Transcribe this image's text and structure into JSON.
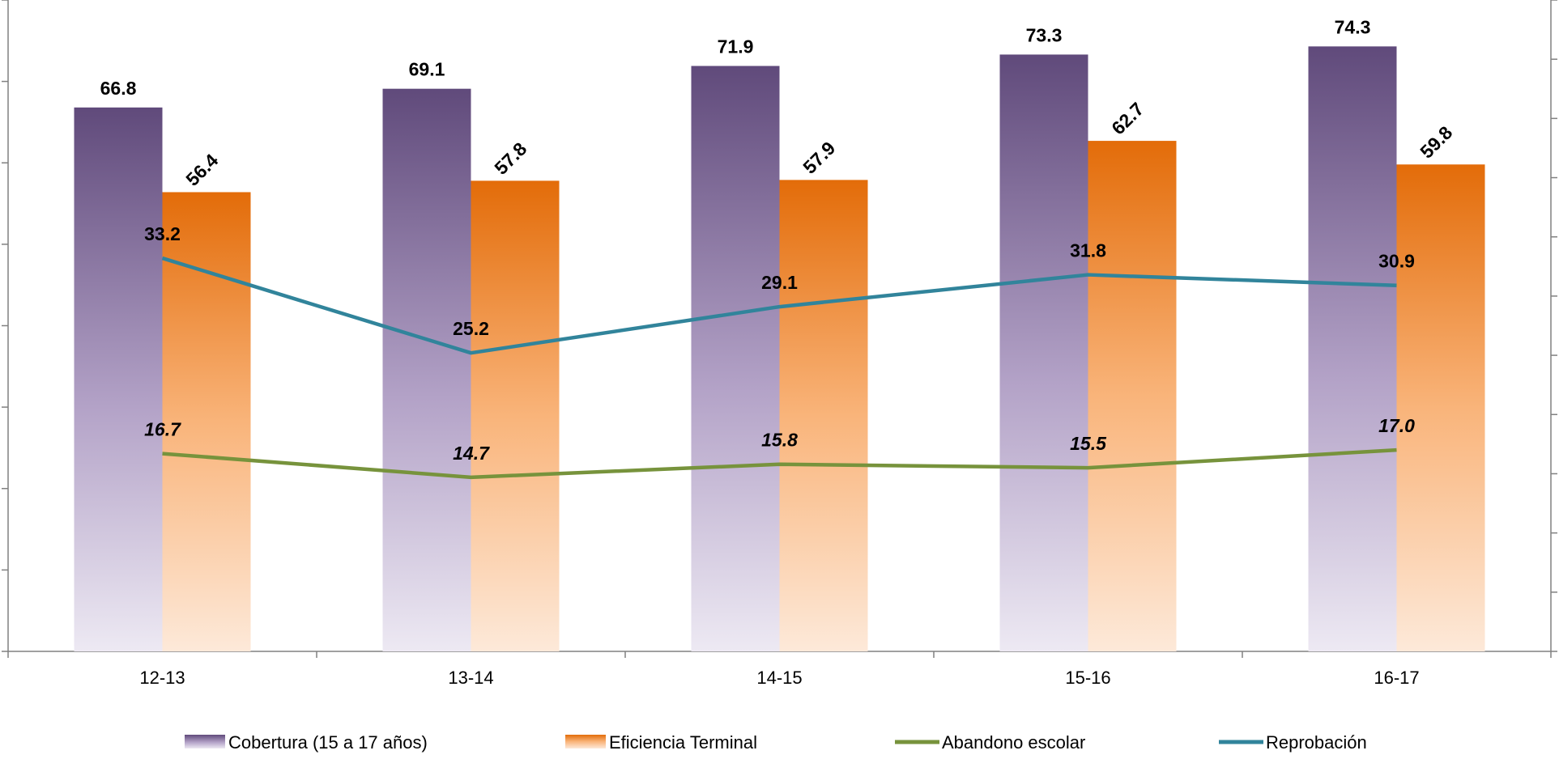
{
  "chart_data": {
    "type": "bar",
    "categories": [
      "12-13",
      "13-14",
      "14-15",
      "15-16",
      "16-17"
    ],
    "series": [
      {
        "name": "Cobertura (15 a 17 años)",
        "type": "bar",
        "values": [
          66.8,
          69.1,
          71.9,
          73.3,
          74.3
        ],
        "color_top": "#604a7b",
        "color_bottom": "#e8e2f0"
      },
      {
        "name": "Eficiencia Terminal",
        "type": "bar",
        "values": [
          56.4,
          57.8,
          57.9,
          62.7,
          59.8
        ],
        "color_top": "#e36c09",
        "color_bottom": "#fde9d9"
      },
      {
        "name": "Abandono escolar",
        "type": "line",
        "values": [
          16.7,
          14.7,
          15.8,
          15.5,
          17.0
        ],
        "labels": [
          "16.7",
          "14.7",
          "15.8",
          "15.5",
          "17.0"
        ],
        "color": "#77933c"
      },
      {
        "name": "Reprobación",
        "type": "line",
        "values": [
          33.2,
          25.2,
          29.1,
          31.8,
          30.9
        ],
        "labels": [
          "33.2",
          "25.2",
          "29.1",
          "31.8",
          "30.9"
        ],
        "color": "#31849b"
      }
    ],
    "ylim": [
      0,
      80
    ],
    "y2lim": [
      0,
      55
    ],
    "legend": "bottom",
    "grid": false
  }
}
